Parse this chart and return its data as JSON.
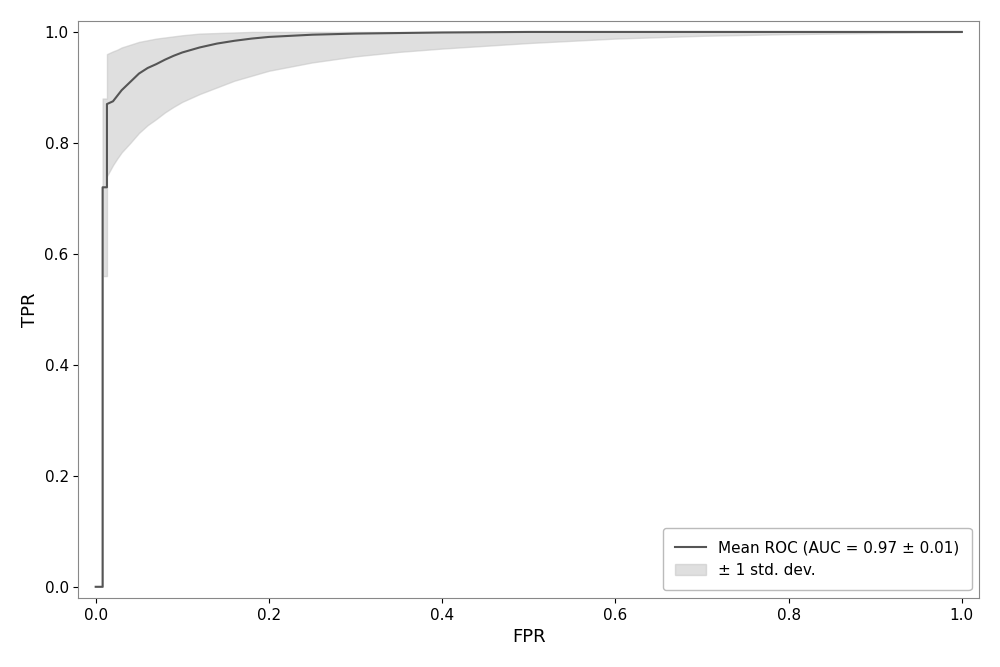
{
  "title": "",
  "xlabel": "FPR",
  "ylabel": "TPR",
  "xlim": [
    -0.02,
    1.02
  ],
  "ylim": [
    -0.02,
    1.02
  ],
  "xticks": [
    0.0,
    0.2,
    0.4,
    0.6,
    0.8,
    1.0
  ],
  "yticks": [
    0.0,
    0.2,
    0.4,
    0.6,
    0.8,
    1.0
  ],
  "mean_color": "#555555",
  "fill_color": "#c0c0c0",
  "fill_alpha": 0.5,
  "line_width": 1.5,
  "legend_label_mean": "Mean ROC (AUC = 0.97 ± 0.01)",
  "legend_label_std": "± 1 std. dev.",
  "legend_loc": "lower right",
  "figsize": [
    10.0,
    6.67
  ],
  "dpi": 100,
  "background_color": "#ffffff",
  "fpr_points": [
    0.0,
    0.008,
    0.008,
    0.013,
    0.013,
    0.02,
    0.025,
    0.03,
    0.04,
    0.05,
    0.06,
    0.07,
    0.08,
    0.09,
    0.1,
    0.12,
    0.14,
    0.16,
    0.18,
    0.2,
    0.25,
    0.3,
    0.35,
    0.4,
    0.5,
    0.6,
    0.7,
    0.8,
    0.9,
    1.0
  ],
  "tpr_mean": [
    0.0,
    0.0,
    0.72,
    0.72,
    0.87,
    0.875,
    0.885,
    0.895,
    0.91,
    0.925,
    0.935,
    0.942,
    0.95,
    0.957,
    0.963,
    0.972,
    0.979,
    0.984,
    0.988,
    0.991,
    0.995,
    0.997,
    0.998,
    0.999,
    1.0,
    1.0,
    1.0,
    1.0,
    1.0,
    1.0
  ],
  "tpr_upper": [
    0.0,
    0.0,
    0.88,
    0.88,
    0.96,
    0.965,
    0.968,
    0.972,
    0.977,
    0.982,
    0.985,
    0.988,
    0.99,
    0.992,
    0.994,
    0.997,
    0.998,
    0.999,
    1.0,
    1.0,
    1.0,
    1.0,
    1.0,
    1.0,
    1.0,
    1.0,
    1.0,
    1.0,
    1.0,
    1.0
  ],
  "tpr_lower": [
    0.0,
    0.0,
    0.56,
    0.56,
    0.74,
    0.76,
    0.772,
    0.783,
    0.8,
    0.818,
    0.832,
    0.843,
    0.855,
    0.865,
    0.874,
    0.888,
    0.9,
    0.912,
    0.921,
    0.93,
    0.945,
    0.956,
    0.964,
    0.97,
    0.98,
    0.988,
    0.993,
    0.996,
    0.998,
    1.0
  ]
}
